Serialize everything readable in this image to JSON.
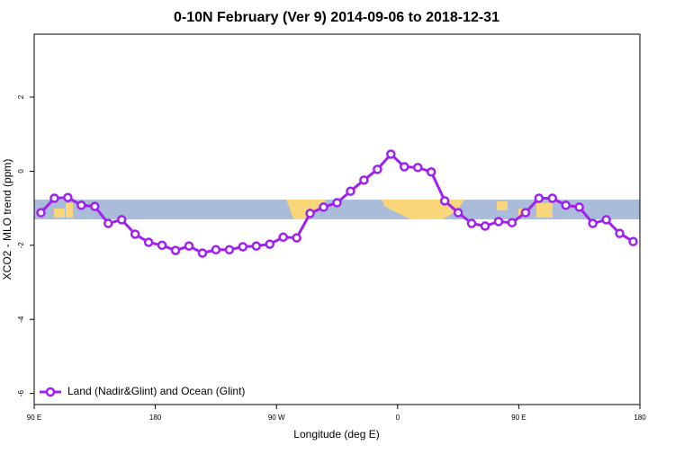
{
  "chart_data": {
    "type": "line",
    "title": "0-10N February (Ver 9)   2014-09-06 to 2018-12-31",
    "x_label": "Longitude (deg E)",
    "y_label": "XCO2 - MLO trend (ppm)",
    "xlim": [
      90,
      540
    ],
    "ylim": [
      -6.3,
      3.7
    ],
    "xticks": [
      {
        "value": 90,
        "label": "90 E"
      },
      180,
      {
        "value": 270,
        "label": "90 W"
      },
      {
        "value": 360,
        "label": "0"
      },
      {
        "value": 450,
        "label": "90 E"
      },
      {
        "value": 540,
        "label": "180"
      }
    ],
    "yticks": [
      2,
      0,
      -2,
      -4,
      -6
    ],
    "legend": "bottom-left",
    "series": [
      {
        "name": "Land (Nadir&Glint) and Ocean (Glint)",
        "color": "#a020f0",
        "x": [
          95,
          105,
          115,
          125,
          135,
          145,
          155,
          165,
          175,
          185,
          195,
          205,
          215,
          225,
          235,
          245,
          255,
          265,
          275,
          285,
          295,
          305,
          315,
          325,
          335,
          345,
          355,
          365,
          375,
          385,
          395,
          405,
          415,
          425,
          435,
          445,
          455,
          465,
          475,
          485,
          495,
          505,
          515,
          525,
          535
        ],
        "values": [
          -1.12,
          -0.73,
          -0.71,
          -0.92,
          -0.95,
          -1.41,
          -1.31,
          -1.7,
          -1.92,
          -2.0,
          -2.14,
          -2.02,
          -2.21,
          -2.12,
          -2.12,
          -2.04,
          -2.02,
          -1.97,
          -1.78,
          -1.8,
          -1.14,
          -0.97,
          -0.85,
          -0.54,
          -0.24,
          0.05,
          0.46,
          0.12,
          0.1,
          -0.02,
          -0.8,
          -1.12,
          -1.41,
          -1.48,
          -1.36,
          -1.39,
          -1.12,
          -0.73,
          -0.73,
          -0.92,
          -0.97,
          -1.41,
          -1.31,
          -1.68,
          -1.9
        ]
      }
    ]
  }
}
